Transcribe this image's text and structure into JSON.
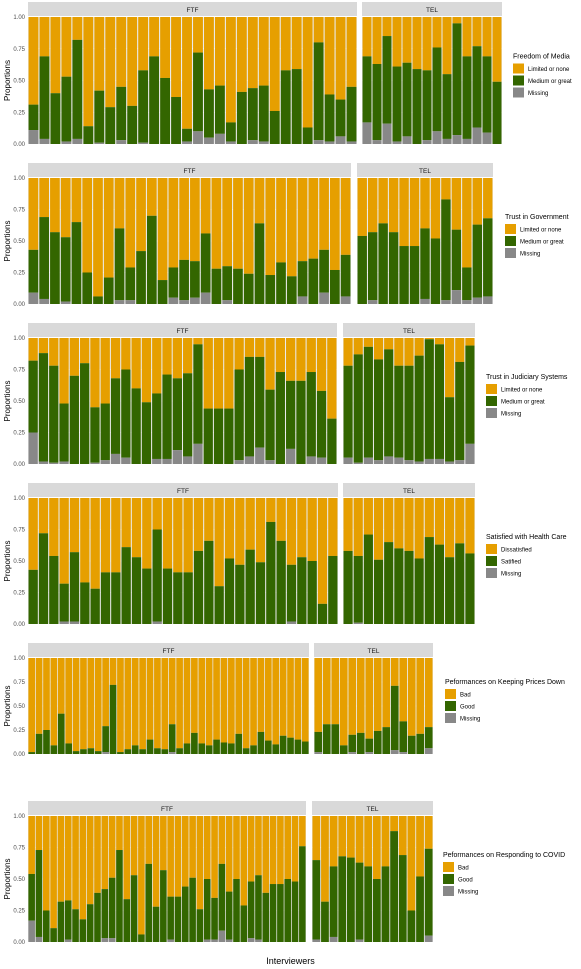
{
  "chart_data": {
    "type": "bar",
    "stacked": true,
    "xlabel": "Interviewers",
    "ylabel": "Proportions",
    "ylim": [
      0,
      1
    ],
    "yticks": [
      "0.00",
      "0.25",
      "0.50",
      "0.75",
      "1.00"
    ],
    "grid": true,
    "legend_placement": "right",
    "colors": {
      "top": "#E69F00",
      "middle": "#336600",
      "missing": "#888888",
      "panel_bg": "#EBEBEB",
      "strip_bg": "#D9D9D9",
      "grid": "#FFFFFF"
    },
    "panels": [
      {
        "legend_title": "Freedom of Media",
        "legend_labels": [
          "Limited or none",
          "Medium or great",
          "Missing"
        ],
        "facets": [
          {
            "strip": "FTF",
            "middle": [
              0.2,
              0.65,
              0.4,
              0.51,
              0.78,
              0.14,
              0.41,
              0.29,
              0.42,
              0.3,
              0.57,
              0.69,
              0.52,
              0.37,
              0.1,
              0.62,
              0.38,
              0.38,
              0.15,
              0.41,
              0.41,
              0.44,
              0.26,
              0.58,
              0.59,
              0.13,
              0.77,
              0.37,
              0.29,
              0.43
            ],
            "missing": [
              0.11,
              0.04,
              0,
              0.02,
              0.04,
              0,
              0.01,
              0,
              0.03,
              0,
              0.01,
              0,
              0,
              0,
              0.02,
              0.1,
              0.05,
              0.08,
              0.02,
              0,
              0.03,
              0.02,
              0,
              0,
              0,
              0,
              0.03,
              0.02,
              0.06,
              0.02
            ]
          },
          {
            "strip": "TEL",
            "middle": [
              0.52,
              0.6,
              0.69,
              0.59,
              0.58,
              0.59,
              0.55,
              0.66,
              0.51,
              0.88,
              0.65,
              0.64,
              0.6,
              0.49
            ],
            "missing": [
              0.17,
              0.03,
              0.16,
              0.02,
              0.06,
              0,
              0.03,
              0.1,
              0.04,
              0.07,
              0.04,
              0.13,
              0.09,
              0
            ]
          }
        ]
      },
      {
        "legend_title": "Trust in Government",
        "legend_labels": [
          "Limited or none",
          "Medium or great",
          "Missing"
        ],
        "facets": [
          {
            "strip": "FTF",
            "middle": [
              0.34,
              0.65,
              0.57,
              0.51,
              0.65,
              0.25,
              0.06,
              0.21,
              0.57,
              0.26,
              0.42,
              0.7,
              0.19,
              0.24,
              0.32,
              0.29,
              0.47,
              0.28,
              0.27,
              0.28,
              0.24,
              0.64,
              0.23,
              0.33,
              0.22,
              0.28,
              0.36,
              0.34,
              0.27,
              0.33
            ],
            "missing": [
              0.09,
              0.04,
              0,
              0.02,
              0,
              0,
              0,
              0,
              0.03,
              0.03,
              0,
              0,
              0,
              0.05,
              0.03,
              0.05,
              0.09,
              0,
              0.03,
              0,
              0,
              0,
              0,
              0,
              0,
              0.06,
              0,
              0.09,
              0,
              0.06
            ]
          },
          {
            "strip": "TEL",
            "middle": [
              0.54,
              0.54,
              0.64,
              0.57,
              0.46,
              0.46,
              0.56,
              0.52,
              0.8,
              0.48,
              0.26,
              0.58,
              0.62
            ],
            "missing": [
              0,
              0.03,
              0,
              0,
              0,
              0,
              0.04,
              0,
              0.03,
              0.11,
              0.03,
              0.05,
              0.06
            ]
          }
        ]
      },
      {
        "legend_title": "Trust in Judiciary Systems",
        "legend_labels": [
          "Limited or none",
          "Medium or great",
          "Missing"
        ],
        "facets": [
          {
            "strip": "FTF",
            "middle": [
              0.57,
              0.86,
              0.77,
              0.46,
              0.7,
              0.8,
              0.44,
              0.45,
              0.6,
              0.7,
              0.6,
              0.49,
              0.52,
              0.67,
              0.57,
              0.66,
              0.79,
              0.44,
              0.44,
              0.44,
              0.72,
              0.79,
              0.72,
              0.56,
              0.73,
              0.54,
              0.66,
              0.67,
              0.53,
              0.36
            ],
            "missing": [
              0.25,
              0.02,
              0.01,
              0.02,
              0,
              0,
              0.01,
              0.03,
              0.08,
              0.05,
              0,
              0,
              0.04,
              0.04,
              0.11,
              0.06,
              0.16,
              0,
              0,
              0,
              0.03,
              0.06,
              0.13,
              0.03,
              0,
              0.12,
              0,
              0.06,
              0.05,
              0
            ]
          },
          {
            "strip": "TEL",
            "middle": [
              0.73,
              0.86,
              0.88,
              0.8,
              0.85,
              0.73,
              0.75,
              0.84,
              0.95,
              0.91,
              0.51,
              0.78,
              0.78
            ],
            "missing": [
              0.05,
              0.01,
              0.05,
              0.03,
              0.06,
              0.05,
              0.03,
              0.02,
              0.04,
              0.04,
              0.02,
              0.03,
              0.16
            ]
          }
        ]
      },
      {
        "legend_title": "Satisfied with Health Care",
        "legend_labels": [
          "Dissatisfied",
          "Satified",
          "Missing"
        ],
        "facets": [
          {
            "strip": "FTF",
            "middle": [
              0.43,
              0.72,
              0.54,
              0.3,
              0.55,
              0.33,
              0.28,
              0.41,
              0.41,
              0.61,
              0.53,
              0.44,
              0.73,
              0.44,
              0.41,
              0.41,
              0.58,
              0.66,
              0.3,
              0.52,
              0.47,
              0.59,
              0.49,
              0.81,
              0.66,
              0.45,
              0.53,
              0.5,
              0.16,
              0.54
            ],
            "missing": [
              0,
              0,
              0,
              0.02,
              0.02,
              0,
              0,
              0,
              0,
              0,
              0,
              0,
              0.02,
              0,
              0,
              0,
              0,
              0,
              0,
              0,
              0,
              0,
              0,
              0,
              0,
              0.02,
              0,
              0,
              0,
              0
            ]
          },
          {
            "strip": "TEL",
            "middle": [
              0.58,
              0.53,
              0.71,
              0.51,
              0.65,
              0.6,
              0.58,
              0.52,
              0.69,
              0.63,
              0.53,
              0.64,
              0.56
            ],
            "missing": [
              0,
              0.01,
              0,
              0,
              0,
              0,
              0,
              0,
              0,
              0,
              0,
              0,
              0
            ]
          }
        ]
      },
      {
        "legend_title": "Peformances on Keeping Prices Down",
        "legend_labels": [
          "Bad",
          "Good",
          "Missing"
        ],
        "facets": [
          {
            "strip": "FTF",
            "middle": [
              0.02,
              0.21,
              0.25,
              0.09,
              0.42,
              0.11,
              0.03,
              0.05,
              0.06,
              0.03,
              0.27,
              0.72,
              0.02,
              0.05,
              0.09,
              0.05,
              0.15,
              0.06,
              0.05,
              0.29,
              0.06,
              0.11,
              0.22,
              0.11,
              0.09,
              0.15,
              0.12,
              0.11,
              0.21,
              0.06,
              0.09,
              0.23,
              0.14,
              0.1,
              0.19,
              0.17,
              0.15,
              0.13
            ],
            "missing": [
              0,
              0,
              0,
              0,
              0,
              0,
              0,
              0,
              0,
              0,
              0.02,
              0,
              0,
              0,
              0,
              0,
              0,
              0,
              0,
              0.02,
              0,
              0,
              0,
              0,
              0,
              0,
              0,
              0,
              0,
              0,
              0,
              0,
              0,
              0,
              0,
              0,
              0,
              0
            ]
          },
          {
            "strip": "TEL",
            "middle": [
              0.21,
              0.31,
              0.31,
              0.09,
              0.18,
              0.22,
              0.14,
              0.24,
              0.28,
              0.67,
              0.32,
              0.19,
              0.21,
              0.22
            ],
            "missing": [
              0.02,
              0,
              0,
              0,
              0.02,
              0,
              0.02,
              0,
              0,
              0.04,
              0.02,
              0,
              0,
              0.06
            ]
          }
        ]
      },
      {
        "legend_title": "Peformances on Responding to COVID",
        "legend_labels": [
          "Bad",
          "Good",
          "Missing"
        ],
        "facets": [
          {
            "strip": "FTF",
            "middle": [
              0.37,
              0.69,
              0.25,
              0.11,
              0.32,
              0.31,
              0.26,
              0.18,
              0.3,
              0.39,
              0.39,
              0.48,
              0.73,
              0.34,
              0.53,
              0.06,
              0.62,
              0.28,
              0.57,
              0.34,
              0.36,
              0.44,
              0.51,
              0.26,
              0.48,
              0.33,
              0.53,
              0.38,
              0.5,
              0.29,
              0.45,
              0.51,
              0.39,
              0.46,
              0.46,
              0.5,
              0.48,
              0.76
            ],
            "missing": [
              0.17,
              0.04,
              0,
              0,
              0,
              0.02,
              0,
              0,
              0,
              0,
              0.03,
              0.03,
              0,
              0,
              0,
              0,
              0,
              0,
              0,
              0.02,
              0,
              0,
              0,
              0,
              0.02,
              0.02,
              0.09,
              0.02,
              0,
              0,
              0.03,
              0.02,
              0,
              0,
              0,
              0,
              0,
              0
            ]
          },
          {
            "strip": "TEL",
            "middle": [
              0.63,
              0.32,
              0.56,
              0.68,
              0.67,
              0.61,
              0.6,
              0.5,
              0.6,
              0.88,
              0.69,
              0.25,
              0.52,
              0.69
            ],
            "missing": [
              0.02,
              0,
              0.04,
              0,
              0,
              0.02,
              0,
              0,
              0,
              0,
              0,
              0,
              0,
              0.05
            ]
          }
        ]
      }
    ]
  }
}
